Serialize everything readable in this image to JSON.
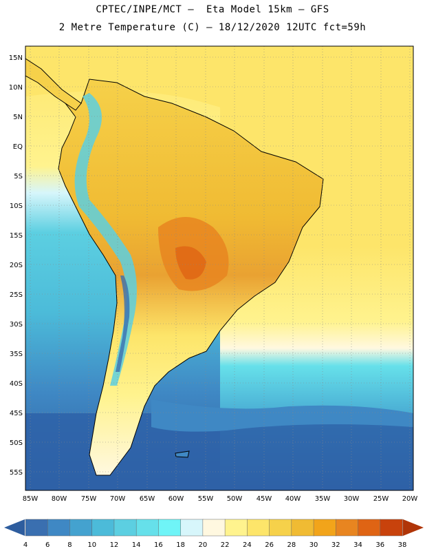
{
  "header": {
    "line1": "CPTEC/INPE/MCT –  Eta Model 15km – GFS",
    "line2": "2 Metre Temperature (C) – 18/12/2020 12UTC fct=59h"
  },
  "map": {
    "lat_labels": [
      "15N",
      "10N",
      "5N",
      "EQ",
      "5S",
      "10S",
      "15S",
      "20S",
      "25S",
      "30S",
      "35S",
      "40S",
      "45S",
      "50S",
      "55S"
    ],
    "lon_labels": [
      "85W",
      "80W",
      "75W",
      "70W",
      "65W",
      "60W",
      "55W",
      "50W",
      "45W",
      "40W",
      "35W",
      "30W",
      "25W",
      "20W"
    ]
  },
  "colorbar": {
    "labels": [
      "4",
      "6",
      "8",
      "10",
      "12",
      "14",
      "16",
      "18",
      "20",
      "22",
      "24",
      "26",
      "28",
      "30",
      "32",
      "34",
      "36",
      "38"
    ],
    "colors": [
      "#3a6fb0",
      "#3f88c4",
      "#44a2cf",
      "#4cbbd9",
      "#5ccfe1",
      "#66e0ea",
      "#6ff4f7",
      "#d7f6fb",
      "#fff8e0",
      "#fff38e",
      "#fde56a",
      "#f6d14a",
      "#f0bb33",
      "#f2a41a",
      "#e88520",
      "#df6414",
      "#c8420c"
    ],
    "low_color": "#2e5d9e",
    "high_color": "#b03508"
  },
  "colors": {
    "ocean_deep": "#2e62a8",
    "ocean_mid": "#45aed3",
    "ocean_light": "#5ccfe1",
    "warm_sea": "#fde56a",
    "land_hot": "#e88520",
    "land_warm": "#f0bb33"
  }
}
